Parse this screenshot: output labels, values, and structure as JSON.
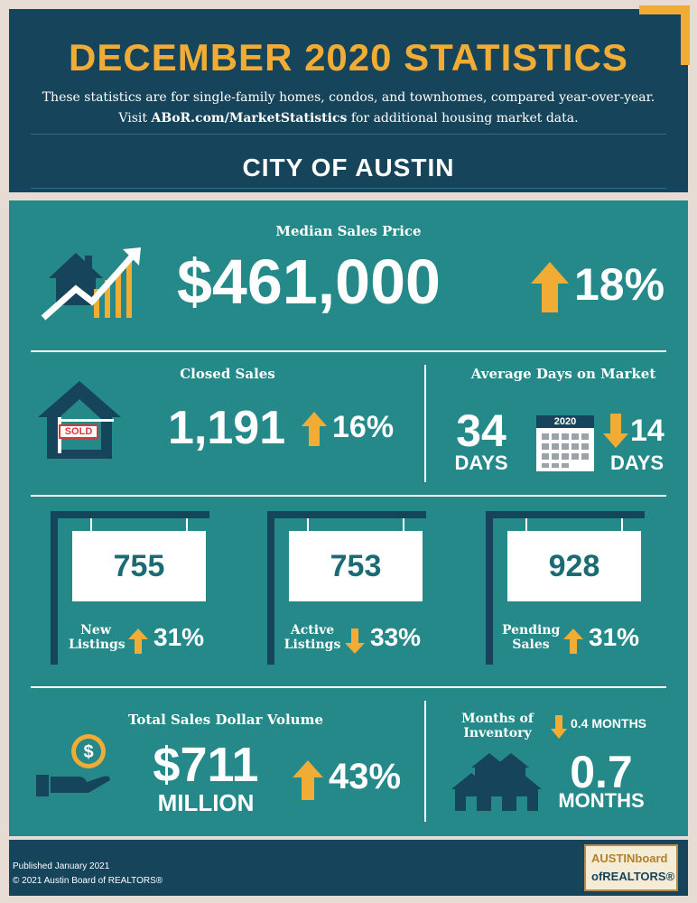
{
  "header": {
    "title": "DECEMBER 2020 STATISTICS",
    "subtitle_line1": "These statistics are for single-family homes, condos, and townhomes, compared year-over-year.",
    "subtitle_visit": "Visit",
    "subtitle_link": "ABoR.com/MarketStatistics",
    "subtitle_rest": "for additional housing market data.",
    "region": "CITY OF AUSTIN"
  },
  "median_sales_price": {
    "label": "Median Sales Price",
    "value": "$461,000",
    "change": "18%",
    "direction": "up"
  },
  "closed_sales": {
    "label": "Closed Sales",
    "value": "1,191",
    "change": "16%",
    "direction": "up",
    "sign_text": "SOLD"
  },
  "avg_days_on_market": {
    "label": "Average Days on Market",
    "value": "34",
    "unit": "DAYS",
    "calendar_year": "2020",
    "change": "14",
    "change_unit": "DAYS",
    "direction": "down"
  },
  "listings": [
    {
      "value": "755",
      "label_line1": "New",
      "label_line2": "Listings",
      "change": "31%",
      "direction": "up"
    },
    {
      "value": "753",
      "label_line1": "Active",
      "label_line2": "Listings",
      "change": "33%",
      "direction": "down"
    },
    {
      "value": "928",
      "label_line1": "Pending",
      "label_line2": "Sales",
      "change": "31%",
      "direction": "up"
    }
  ],
  "total_sales_volume": {
    "label": "Total Sales Dollar Volume",
    "value": "$711",
    "unit": "MILLION",
    "change": "43%",
    "direction": "up"
  },
  "months_of_inventory": {
    "label_line1": "Months of",
    "label_line2": "Inventory",
    "change": "0.4 MONTHS",
    "direction": "down",
    "value": "0.7",
    "unit": "MONTHS"
  },
  "footer": {
    "published": "Published January 2021",
    "copyright": "© 2021 Austin Board of REALTORS®",
    "logo_line1": "AUSTINboard",
    "logo_line2": "ofREALTORS®"
  },
  "colors": {
    "navy": "#16445a",
    "teal": "#25898a",
    "gold": "#f1ac36",
    "beige": "#e7dcd3"
  }
}
